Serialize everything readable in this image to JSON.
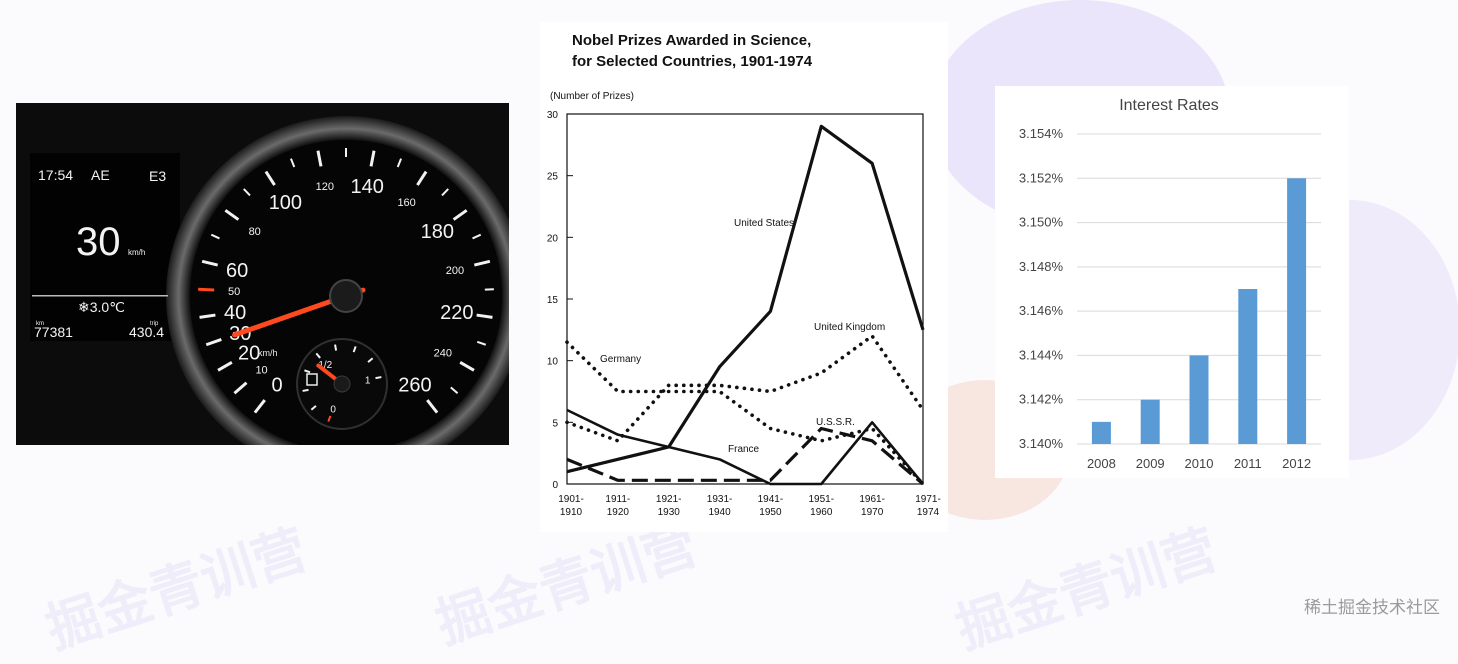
{
  "watermark": {
    "text": "稀土掘金技术社区",
    "brand": "掘金青训营"
  },
  "colors": {
    "needle": "#ff4a1f",
    "dash_text": "#f3f3f3",
    "bar": "#5b9bd5",
    "grid": "#d9d9d9",
    "ink": "#111111"
  },
  "dashboard": {
    "time": "17:54",
    "mode": "AE",
    "gear": "E3",
    "speed": "30",
    "speed_unit": "km/h",
    "temperature": "❄3.0℃",
    "odometer_label": "km",
    "odometer": "77381",
    "trip_label": "trip",
    "trip": "430.4",
    "gauge_unit": "km/h",
    "gauge_labels": [
      "0",
      "10",
      "20",
      "30",
      "40",
      "50",
      "60",
      "80",
      "100",
      "120",
      "140",
      "160",
      "180",
      "200",
      "220",
      "240",
      "260"
    ],
    "speed_reading": 30,
    "fuel_labels": [
      "0",
      "1/2",
      "1"
    ],
    "fuel_level": 0.45
  },
  "chart_data": [
    {
      "type": "line",
      "title": "Nobel Prizes Awarded in Science,",
      "subtitle": "for Selected Countries, 1901-1974",
      "ylabel": "(Number of Prizes)",
      "xlabel": "",
      "ylim": [
        0,
        30
      ],
      "yticks": [
        "0",
        "5",
        "10",
        "15",
        "20",
        "25",
        "30"
      ],
      "categories": [
        [
          "1901-",
          "1910"
        ],
        [
          "1911-",
          "1920"
        ],
        [
          "1921-",
          "1930"
        ],
        [
          "1931-",
          "1940"
        ],
        [
          "1941-",
          "1950"
        ],
        [
          "1951-",
          "1960"
        ],
        [
          "1961-",
          "1970"
        ],
        [
          "1971-",
          "1974"
        ]
      ],
      "series": [
        {
          "name": "United States",
          "style": "solid-thick",
          "values": [
            1,
            2,
            3,
            9.5,
            14,
            29,
            26,
            12.5
          ]
        },
        {
          "name": "United Kingdom",
          "style": "dotted",
          "values": [
            5,
            3.5,
            8,
            8,
            7.5,
            9,
            12,
            6
          ]
        },
        {
          "name": "Germany",
          "style": "dotted",
          "values": [
            11.5,
            7.5,
            7.5,
            7.5,
            4.5,
            3.5,
            4.5,
            0
          ]
        },
        {
          "name": "France",
          "style": "solid",
          "values": [
            6,
            4,
            3,
            2,
            0,
            0,
            5,
            0
          ]
        },
        {
          "name": "U.S.S.R.",
          "style": "dashed",
          "values": [
            2,
            0.3,
            0.3,
            0.3,
            0.3,
            4.5,
            3.5,
            0
          ]
        }
      ],
      "grid": false
    },
    {
      "type": "bar",
      "title": "Interest Rates",
      "categories": [
        "2008",
        "2009",
        "2010",
        "2011",
        "2012"
      ],
      "values": [
        3.141,
        3.142,
        3.144,
        3.147,
        3.152
      ],
      "ylim": [
        3.14,
        3.154
      ],
      "yticks": [
        "3.140%",
        "3.142%",
        "3.144%",
        "3.146%",
        "3.148%",
        "3.150%",
        "3.152%",
        "3.154%"
      ],
      "xlabel": "",
      "ylabel": "",
      "grid": true
    }
  ]
}
